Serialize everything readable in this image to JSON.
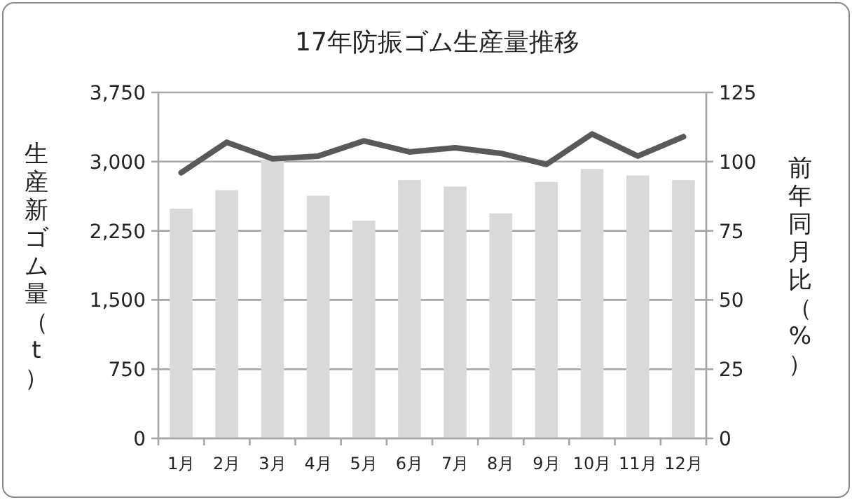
{
  "chart_data": {
    "type": "bar",
    "title": "17年防振ゴム生産量推移",
    "ylabel": "生産新ゴム量（t）",
    "y2label": "前年同月比（%）",
    "categories": [
      "1月",
      "2月",
      "3月",
      "4月",
      "5月",
      "6月",
      "7月",
      "8月",
      "9月",
      "10月",
      "11月",
      "12月"
    ],
    "series": [
      {
        "color": "#d9d9d9",
        "values": [
          2490,
          2690,
          3020,
          2630,
          2360,
          2800,
          2730,
          2440,
          2780,
          2920,
          2850,
          2800
        ]
      },
      {
        "type": "line",
        "axis": "y2",
        "color": "#595959",
        "values": [
          96,
          107,
          101,
          102,
          107.5,
          103.5,
          105,
          103,
          99,
          110,
          102,
          109
        ]
      }
    ],
    "ylim": [
      0,
      3750
    ],
    "yticks": [
      0,
      {
        "value": 750,
        "label": "750"
      },
      {
        "value": 1500,
        "label": "1,500"
      },
      {
        "value": 2250,
        "label": "2,250"
      },
      {
        "value": 3000,
        "label": "3,000"
      },
      {
        "value": 3750,
        "label": "3,750"
      }
    ],
    "y2lim": [
      0,
      125
    ],
    "y2ticks": [
      0,
      25,
      50,
      75,
      100,
      125
    ],
    "grid": "y",
    "marker": "none",
    "line_style": "solid"
  }
}
